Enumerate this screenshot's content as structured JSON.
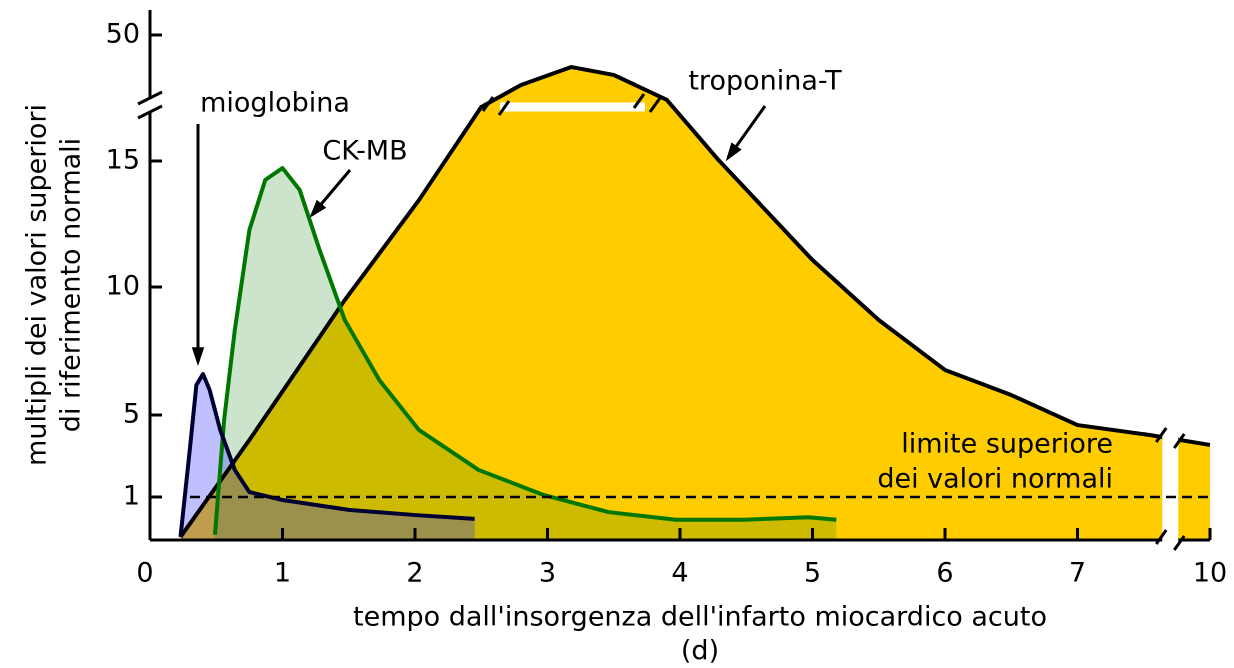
{
  "chart_data": {
    "type": "area",
    "x_label": [
      "tempo dall'insorgenza dell'infarto miocardico acuto",
      "(d)"
    ],
    "y_label": [
      "multipli dei valori superiori",
      "di riferimento normali"
    ],
    "xlim": [
      0,
      10
    ],
    "xticks": [
      0,
      1,
      2,
      3,
      4,
      5,
      6,
      7,
      10
    ],
    "ylim": [
      0,
      50
    ],
    "yticks": [
      1,
      5,
      10,
      15,
      50
    ],
    "reference_line": {
      "value": 1,
      "label": [
        "limite superiore",
        "dei valori normali"
      ]
    },
    "series": [
      {
        "name": "mioglobina",
        "color": "#000033",
        "fill": "#3030ff",
        "x": [
          0.23,
          0.3,
          0.35,
          0.4,
          0.45,
          0.53,
          0.64,
          0.75,
          1.0,
          1.5,
          2.0,
          2.45
        ],
        "values": [
          0.07,
          3.29,
          6.17,
          6.6,
          5.98,
          4.27,
          2.32,
          1.24,
          0.93,
          0.7,
          0.58,
          0.49
        ]
      },
      {
        "name": "CK-MB",
        "color": "#007700",
        "fill": "#007800",
        "x": [
          0.49,
          0.56,
          0.64,
          0.75,
          0.87,
          1.0,
          1.13,
          1.28,
          1.47,
          1.73,
          2.03,
          2.48,
          2.97,
          3.46,
          3.97,
          4.48,
          4.97,
          5.18
        ],
        "values": [
          0.12,
          4.8,
          8.32,
          12.26,
          14.25,
          14.72,
          13.85,
          11.47,
          8.71,
          6.37,
          4.27,
          2.32,
          1.1,
          0.65,
          0.47,
          0.47,
          0.53,
          0.47
        ]
      },
      {
        "name": "troponina-T",
        "color": "#000000",
        "fill": "#ffcc00",
        "x": [
          0.23,
          0.75,
          1.47,
          2.03,
          2.5,
          2.8,
          3.18,
          3.5,
          3.9,
          4.29,
          5.0,
          5.5,
          6.0,
          6.5,
          7.0,
          8.65,
          10.0
        ],
        "values": [
          0.07,
          3.78,
          9.49,
          13.45,
          30,
          36.1,
          41.1,
          38.9,
          32,
          15.3,
          11.07,
          8.71,
          6.76,
          5.78,
          4.51,
          4.02,
          3.54
        ]
      }
    ]
  }
}
